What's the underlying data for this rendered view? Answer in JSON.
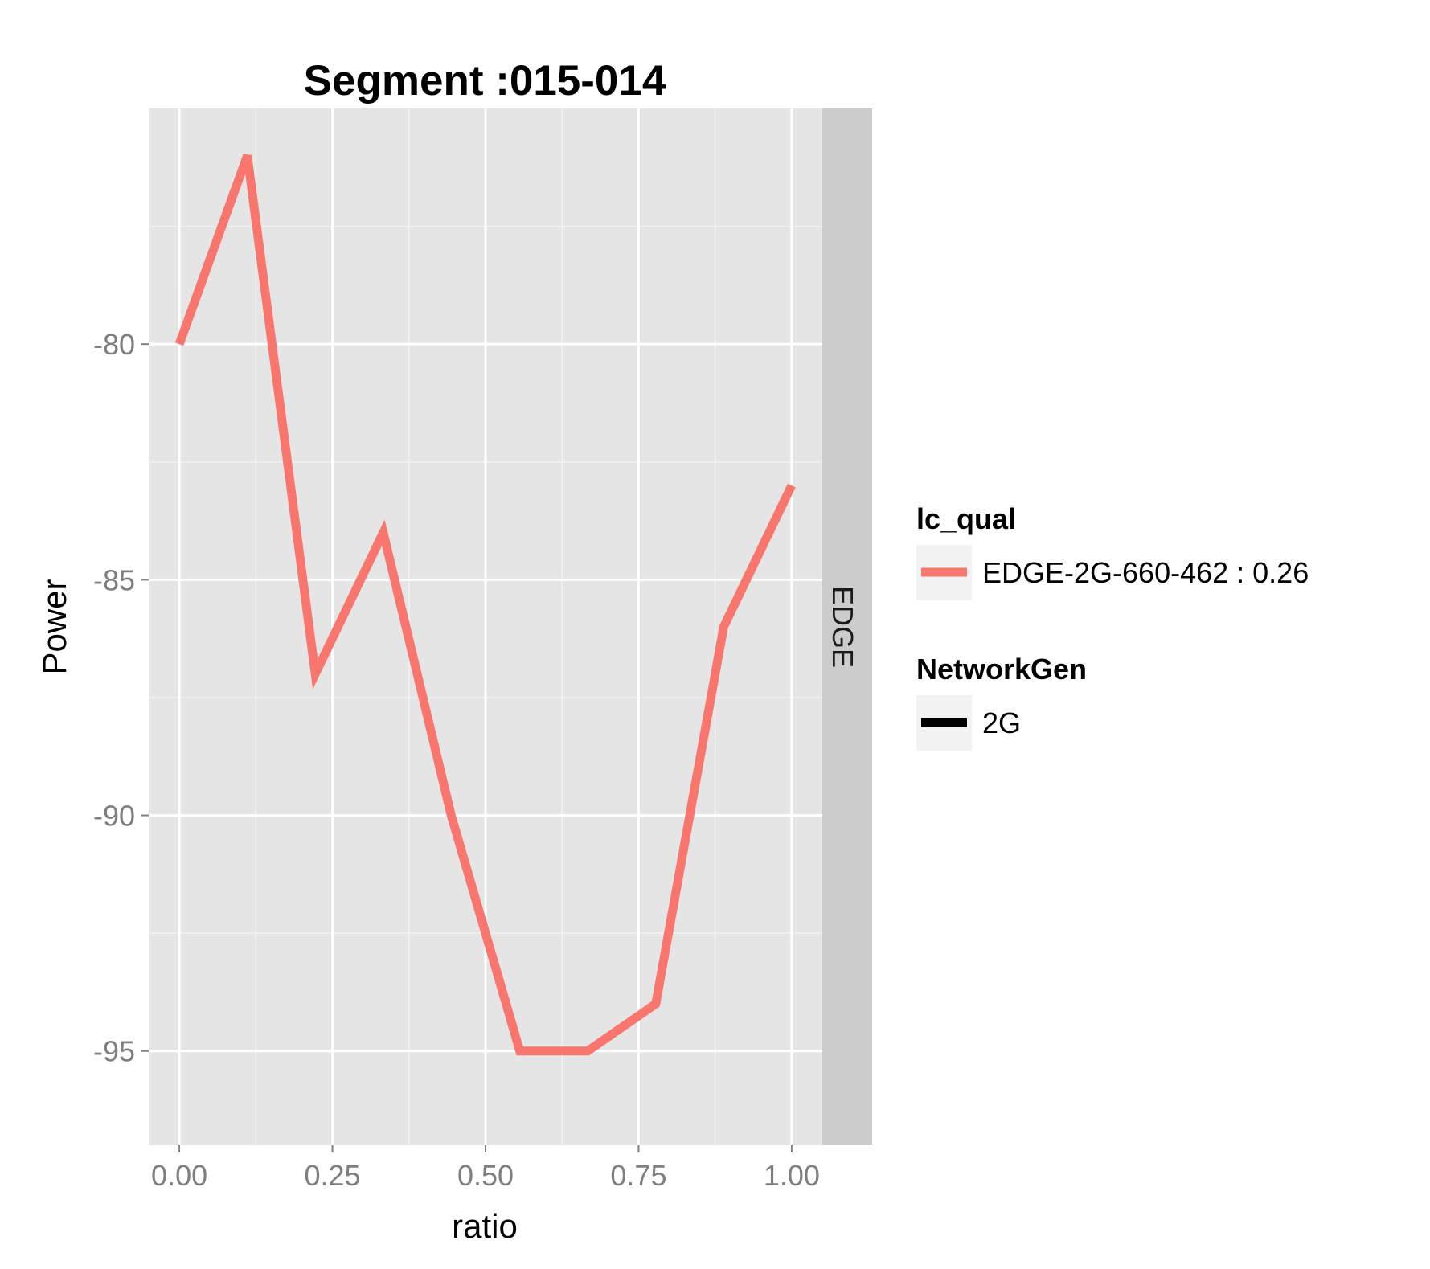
{
  "chart_data": {
    "type": "line",
    "title": "Segment :015-014",
    "xlabel": "ratio",
    "ylabel": "Power",
    "xlim": [
      -0.05,
      1.05
    ],
    "ylim": [
      -97.0,
      -75.0
    ],
    "x_ticks": [
      0.0,
      0.25,
      0.5,
      0.75,
      1.0
    ],
    "x_tick_labels": [
      "0.00",
      "0.25",
      "0.50",
      "0.75",
      "1.00"
    ],
    "y_ticks": [
      -80,
      -85,
      -90,
      -95
    ],
    "y_tick_labels": [
      "-80",
      "-85",
      "-90",
      "-95"
    ],
    "facet_label": "EDGE",
    "grid": true,
    "legend_position": "right",
    "series": [
      {
        "name": "EDGE-2G-660-462 : 0.26",
        "color": "#F8766D",
        "x": [
          0.0,
          0.111,
          0.222,
          0.333,
          0.444,
          0.556,
          0.667,
          0.778,
          0.889,
          1.0
        ],
        "y": [
          -80,
          -76,
          -87,
          -84,
          -90,
          -95,
          -95,
          -94,
          -86,
          -83
        ]
      }
    ],
    "legends": [
      {
        "title": "lc_qual",
        "entries": [
          {
            "label": "EDGE-2G-660-462 : 0.26",
            "color": "#F8766D"
          }
        ]
      },
      {
        "title": "NetworkGen",
        "entries": [
          {
            "label": "2G",
            "color": "#000000"
          }
        ]
      }
    ]
  }
}
